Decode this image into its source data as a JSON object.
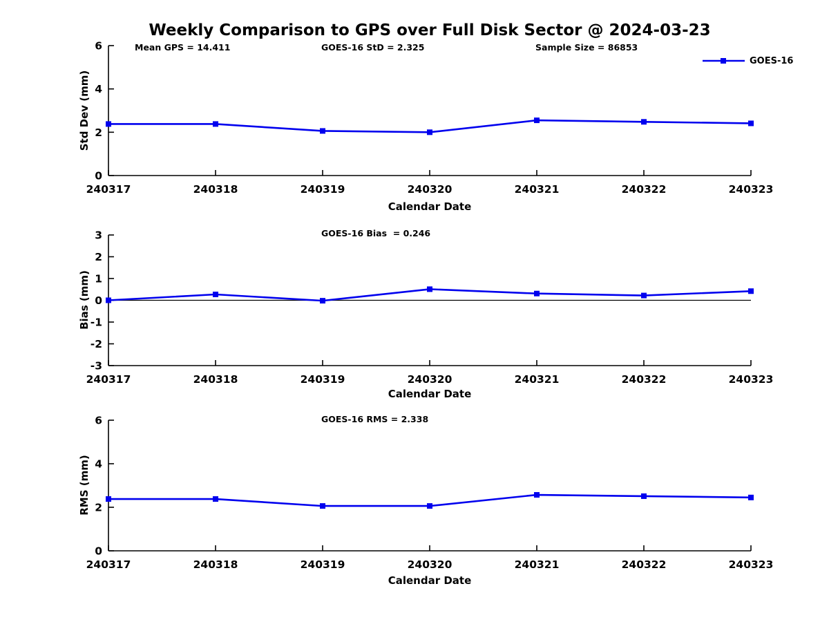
{
  "title": "Weekly Comparison to GPS over Full Disk Sector @ 2024-03-23",
  "colors": {
    "line": "#0000ee",
    "axis": "#000000",
    "background": "#ffffff",
    "text": "#000000"
  },
  "legend": {
    "label": "GOES-16",
    "marker": "square"
  },
  "chart_data": [
    {
      "type": "line",
      "annotations": [
        "Mean GPS = 14.411",
        "GOES-16 StD = 2.325",
        "Sample Size = 86853"
      ],
      "ylabel": "Std Dev (mm)",
      "xlabel": "Calendar Date",
      "ylim": [
        0,
        6
      ],
      "yticks": [
        0,
        2,
        4,
        6
      ],
      "grid": false,
      "legend_position": "top-right",
      "categories": [
        "240317",
        "240318",
        "240319",
        "240320",
        "240321",
        "240322",
        "240323"
      ],
      "series": [
        {
          "name": "GOES-16",
          "values": [
            2.38,
            2.38,
            2.06,
            2.0,
            2.55,
            2.48,
            2.41
          ]
        }
      ]
    },
    {
      "type": "line",
      "subtitle": "GOES-16 Bias  = 0.246",
      "ylabel": "Bias (mm)",
      "xlabel": "Calendar Date",
      "ylim": [
        -3,
        3
      ],
      "yticks": [
        3,
        2,
        1,
        0,
        -1,
        -2,
        -3
      ],
      "zero_line": true,
      "grid": false,
      "categories": [
        "240317",
        "240318",
        "240319",
        "240320",
        "240321",
        "240322",
        "240323"
      ],
      "series": [
        {
          "name": "GOES-16",
          "values": [
            0.0,
            0.27,
            -0.02,
            0.51,
            0.31,
            0.22,
            0.42
          ]
        }
      ]
    },
    {
      "type": "line",
      "subtitle": "GOES-16 RMS = 2.338",
      "ylabel": "RMS (mm)",
      "xlabel": "Calendar Date",
      "ylim": [
        0,
        6
      ],
      "yticks": [
        0,
        2,
        4,
        6
      ],
      "grid": false,
      "categories": [
        "240317",
        "240318",
        "240319",
        "240320",
        "240321",
        "240322",
        "240323"
      ],
      "series": [
        {
          "name": "GOES-16",
          "values": [
            2.38,
            2.38,
            2.06,
            2.06,
            2.57,
            2.51,
            2.45
          ]
        }
      ]
    }
  ]
}
